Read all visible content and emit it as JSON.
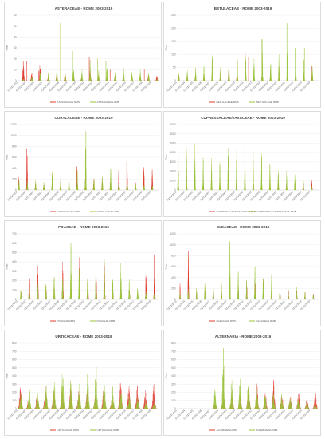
{
  "colors": {
    "rms": "#e03c31",
    "rmb": "#9cc43e",
    "grid": "#e8e8e8",
    "axis": "#bfbfbf"
  },
  "x_ticks": [
    "01/01/2003",
    "01/01/2004",
    "01/01/2005",
    "01/01/2006",
    "01/01/2007",
    "01/01/2008",
    "01/01/2009",
    "01/01/2010",
    "01/01/2011",
    "01/01/2012",
    "01/01/2013",
    "01/01/2014",
    "01/01/2015",
    "01/01/2016",
    "01/01/2017",
    "01/01/2018",
    "01/01/2019"
  ],
  "chart_data": [
    {
      "type": "area",
      "title": "ASTERACEAE - ROME 2003-2019",
      "ylabel": "P/m³",
      "yticks": [
        0,
        10,
        20,
        30,
        40,
        50,
        60
      ],
      "ylim": [
        0,
        60
      ],
      "grid": true,
      "legend": "bottom",
      "series": [
        {
          "name": "ASTERACEAE RMS",
          "color": "rms",
          "peaks": [
            22,
            9,
            17,
            6,
            5,
            8,
            5,
            4,
            11,
            6,
            4,
            5,
            3,
            2,
            5,
            6,
            6
          ],
          "season": 0.7,
          "width": 0.12,
          "spikes": [
            [
              0.05,
              22
            ],
            [
              1.12,
              18
            ],
            [
              2.55,
              9
            ],
            [
              8.6,
              22
            ],
            [
              9.4,
              8
            ],
            [
              11.1,
              10
            ],
            [
              15.2,
              10
            ]
          ]
        },
        {
          "name": "ASTERACEAE RMB",
          "color": "rmb",
          "peaks": [
            2,
            4,
            8,
            10,
            12,
            10,
            11,
            12,
            13,
            10,
            13,
            12,
            12,
            9,
            11,
            8,
            2
          ],
          "season": 0.72,
          "width": 0.09,
          "spikes": [
            [
              5.15,
              53
            ],
            [
              6.6,
              27
            ],
            [
              8.7,
              19
            ],
            [
              9.6,
              20
            ],
            [
              10.6,
              18
            ]
          ]
        }
      ]
    },
    {
      "type": "area",
      "title": "BETULACEAE - ROME 2003-2019",
      "ylabel": "P/m³",
      "yticks": [
        0,
        50,
        100,
        150,
        200,
        250
      ],
      "ylim": [
        0,
        250
      ],
      "grid": true,
      "legend": "bottom",
      "series": [
        {
          "name": "BETULACEAE RMS",
          "color": "rms",
          "peaks": [
            25,
            10,
            20,
            8,
            15,
            30,
            50,
            40,
            20,
            25,
            30,
            20,
            15,
            10,
            20,
            25,
            55
          ],
          "season": 0.22,
          "width": 0.07,
          "spikes": [
            [
              8.2,
              106
            ],
            [
              8.6,
              90
            ],
            [
              12.2,
              35
            ],
            [
              16.2,
              55
            ]
          ]
        },
        {
          "name": "BETULACEAE RMB",
          "color": "rmb",
          "peaks": [
            30,
            45,
            55,
            60,
            105,
            80,
            85,
            95,
            110,
            95,
            158,
            80,
            100,
            115,
            120,
            90,
            60
          ],
          "season": 0.25,
          "width": 0.07,
          "spikes": [
            [
              10.2,
              158
            ],
            [
              13.2,
              219
            ],
            [
              14.2,
              125
            ],
            [
              15.3,
              125
            ]
          ]
        }
      ]
    },
    {
      "type": "area",
      "title": "CORYLACEAE - ROME 2003-2019",
      "ylabel": "P/m³",
      "yticks": [
        0,
        200,
        400,
        600,
        800,
        1000,
        1200
      ],
      "ylim": [
        0,
        1200
      ],
      "grid": true,
      "legend": "bottom",
      "series": [
        {
          "name": "CORYLACEAE RMS",
          "color": "rms",
          "peaks": [
            240,
            750,
            150,
            100,
            120,
            100,
            60,
            400,
            300,
            280,
            250,
            200,
            500,
            380,
            200,
            420,
            380
          ],
          "season": 0.15,
          "width": 0.07,
          "spikes": [
            [
              1.1,
              750
            ],
            [
              7.1,
              430
            ],
            [
              13.1,
              520
            ],
            [
              15.1,
              420
            ]
          ]
        },
        {
          "name": "CORYLACEAE RMB",
          "color": "rmb",
          "peaks": [
            200,
            180,
            220,
            150,
            500,
            300,
            320,
            400,
            1080,
            250,
            300,
            420,
            350,
            200,
            150,
            100,
            80
          ],
          "season": 0.17,
          "width": 0.07,
          "spikes": [
            [
              8.2,
              1080
            ]
          ]
        }
      ]
    },
    {
      "type": "area",
      "title": "CUPRESSACEAE/TAXACEAE - ROME 2003-2019",
      "ylabel": "P/m³",
      "yticks": [
        0,
        1000,
        2000,
        3000,
        4000,
        5000,
        6000,
        7000
      ],
      "ylim": [
        0,
        7000
      ],
      "grid": true,
      "legend": "bottom",
      "series": [
        {
          "name": "CUPRESSACEAE/TAXACEAE RMS",
          "color": "rms",
          "peaks": [
            400,
            500,
            300,
            400,
            300,
            500,
            400,
            600,
            500,
            700,
            600,
            500,
            400,
            300,
            600,
            800,
            1100
          ],
          "season": 0.18,
          "width": 0.06,
          "spikes": []
        },
        {
          "name": "CUPRESSACEAE/TAXACEAE RMB",
          "color": "rmb",
          "peaks": [
            4800,
            5200,
            5300,
            4000,
            3600,
            3500,
            5400,
            5100,
            6400,
            4700,
            4600,
            3800,
            3500,
            2400,
            2300,
            1200,
            600
          ],
          "season": 0.16,
          "width": 0.06,
          "spikes": []
        }
      ]
    },
    {
      "type": "area",
      "title": "POACEAE - ROME 2003-2019",
      "ylabel": "P/m³",
      "yticks": [
        0,
        100,
        200,
        300,
        400,
        500,
        600,
        700
      ],
      "ylim": [
        0,
        700
      ],
      "grid": true,
      "legend": "bottom",
      "series": [
        {
          "name": "POACEAE RMS",
          "color": "rms",
          "peaks": [
            80,
            420,
            430,
            120,
            100,
            420,
            100,
            450,
            300,
            460,
            430,
            200,
            150,
            120,
            80,
            430,
            470
          ],
          "season": 0.42,
          "width": 0.08,
          "spikes": [
            [
              16.4,
              470
            ]
          ]
        },
        {
          "name": "POACEAE RMB",
          "color": "rmb",
          "peaks": [
            120,
            180,
            250,
            200,
            300,
            250,
            600,
            400,
            250,
            350,
            480,
            300,
            420,
            230,
            150,
            120,
            90
          ],
          "season": 0.4,
          "width": 0.08,
          "spikes": [
            [
              6.4,
              600
            ]
          ]
        }
      ]
    },
    {
      "type": "area",
      "title": "OLEACEAE - ROME 2003-2019",
      "ylabel": "P/m³",
      "yticks": [
        0,
        200,
        400,
        600,
        800,
        1000,
        1200
      ],
      "ylim": [
        0,
        1200
      ],
      "grid": true,
      "legend": "bottom",
      "series": [
        {
          "name": "OLEACEAE RMS",
          "color": "rms",
          "peaks": [
            300,
            880,
            150,
            200,
            250,
            120,
            180,
            220,
            500,
            560,
            450,
            300,
            250,
            200,
            180,
            150,
            120
          ],
          "season": 0.38,
          "width": 0.06,
          "spikes": [
            [
              1.38,
              880
            ]
          ]
        },
        {
          "name": "OLEACEAE RMB",
          "color": "rmb",
          "peaks": [
            150,
            200,
            250,
            300,
            350,
            300,
            1060,
            600,
            400,
            700,
            500,
            600,
            300,
            200,
            250,
            150,
            100
          ],
          "season": 0.36,
          "width": 0.06,
          "spikes": [
            [
              6.37,
              1060
            ]
          ]
        }
      ]
    },
    {
      "type": "area",
      "title": "URTICACEAE - ROME 2003-2019",
      "ylabel": "P/m³",
      "yticks": [
        0,
        100,
        200,
        300,
        400,
        500,
        600,
        700,
        800
      ],
      "ylim": [
        0,
        800
      ],
      "grid": true,
      "legend": "bottom",
      "series": [
        {
          "name": "URTICACEAE RMS",
          "color": "rms",
          "peaks": [
            280,
            150,
            180,
            300,
            250,
            250,
            280,
            230,
            220,
            200,
            300,
            150,
            330,
            320,
            300,
            250,
            350
          ],
          "season": 0.35,
          "width": 0.22,
          "spikes": []
        },
        {
          "name": "URTICACEAE RMB",
          "color": "rmb",
          "peaks": [
            200,
            300,
            220,
            400,
            350,
            600,
            450,
            380,
            500,
            680,
            350,
            300,
            250,
            200,
            150,
            120,
            80
          ],
          "season": 0.4,
          "width": 0.2,
          "spikes": [
            [
              9.4,
              680
            ]
          ]
        }
      ]
    },
    {
      "type": "area",
      "title": "ALTERNARIA - ROME 2003-2019",
      "ylabel": "P/m³",
      "yticks": [
        0,
        100,
        200,
        300,
        400,
        500,
        600,
        700,
        800
      ],
      "ylim": [
        0,
        800
      ],
      "grid": true,
      "legend": "bottom",
      "series": [
        {
          "name": "ALTERNARIA RMS",
          "color": "rms",
          "peaks": [
            0,
            0,
            0,
            0,
            80,
            150,
            200,
            180,
            300,
            320,
            250,
            350,
            200,
            180,
            220,
            150,
            250
          ],
          "season": 0.6,
          "width": 0.2,
          "spikes": [
            [
              11.6,
              350
            ]
          ]
        },
        {
          "name": "ALTERNARIA RMB",
          "color": "rmb",
          "peaks": [
            0,
            0,
            0,
            0,
            300,
            740,
            450,
            500,
            400,
            300,
            250,
            200,
            180,
            150,
            120,
            100,
            80
          ],
          "season": 0.58,
          "width": 0.18,
          "spikes": [
            [
              5.6,
              740
            ]
          ]
        }
      ]
    }
  ]
}
